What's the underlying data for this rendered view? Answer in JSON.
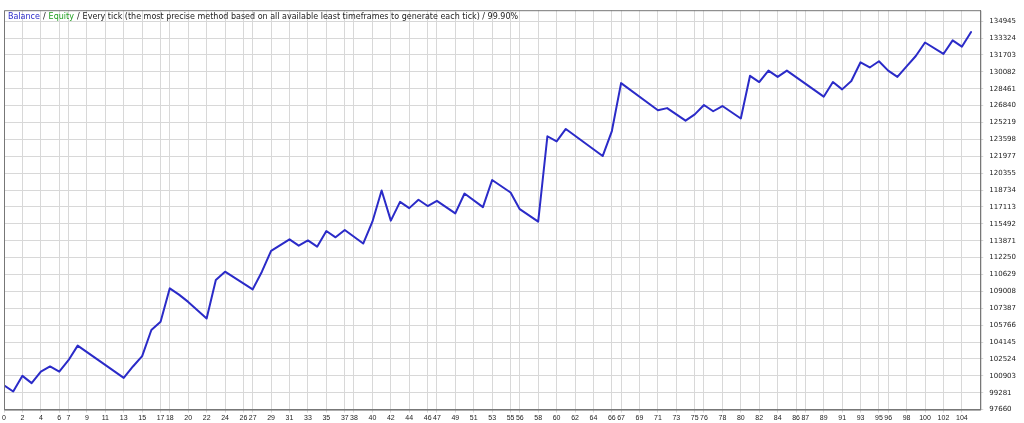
{
  "chart_data": {
    "type": "line",
    "title": "Every tick (the most precise method based on all available least timeframes to generate each tick) / 99.90%",
    "annotations": [
      "/",
      "/"
    ],
    "x": [
      0,
      1,
      2,
      3,
      4,
      5,
      6,
      7,
      8,
      13,
      14,
      15,
      16,
      17,
      18,
      19,
      20,
      21,
      22,
      23,
      24,
      27,
      28,
      29,
      31,
      32,
      33,
      34,
      35,
      36,
      37,
      39,
      40,
      41,
      42,
      43,
      44,
      45,
      46,
      47,
      49,
      50,
      52,
      53,
      55,
      56,
      58,
      59,
      60,
      61,
      65,
      66,
      67,
      71,
      72,
      74,
      75,
      76,
      77,
      78,
      80,
      81,
      82,
      83,
      84,
      85,
      89,
      90,
      91,
      92,
      93,
      94,
      95,
      96,
      97,
      98,
      99,
      100,
      102,
      103,
      104,
      105
    ],
    "series": [
      {
        "name": "Balance",
        "color": "#2b2bc8",
        "values": [
          100000,
          99400,
          100900,
          100200,
          101300,
          101800,
          101300,
          102400,
          103800,
          100700,
          101800,
          102800,
          105300,
          106100,
          109300,
          108700,
          108000,
          107200,
          106400,
          110100,
          110900,
          109200,
          110900,
          112900,
          114000,
          113400,
          113900,
          113300,
          114800,
          114200,
          114900,
          113600,
          115700,
          118700,
          115800,
          117600,
          117000,
          117800,
          117200,
          117700,
          116500,
          118400,
          117100,
          119700,
          118500,
          116900,
          115700,
          123900,
          123400,
          124600,
          122000,
          124400,
          129000,
          126400,
          126600,
          125400,
          126000,
          126900,
          126300,
          126800,
          125600,
          129700,
          129100,
          130200,
          129600,
          130200,
          127700,
          129100,
          128400,
          129200,
          131000,
          130500,
          131100,
          130200,
          129600,
          130600,
          131600,
          132900,
          131800,
          133100,
          132500,
          133900
        ]
      },
      {
        "name": "Equity",
        "color": "#22a022",
        "values": [
          null,
          null,
          null,
          null,
          null,
          null,
          null,
          null,
          null,
          null,
          null,
          null,
          null,
          null,
          null,
          null,
          null,
          null,
          null,
          null,
          null,
          null,
          null,
          null,
          null,
          null,
          null,
          null,
          null,
          null,
          null,
          null,
          null,
          null,
          null,
          null,
          null,
          null,
          null,
          null,
          null,
          null,
          null,
          null,
          null,
          null,
          null,
          null,
          null,
          null,
          null,
          null,
          null,
          null,
          null,
          null,
          null,
          null,
          null,
          null,
          null,
          null,
          null,
          null,
          null,
          null,
          null,
          null,
          null,
          null,
          null,
          null,
          null,
          null,
          null,
          null,
          null,
          null,
          null,
          null,
          null,
          null
        ]
      }
    ],
    "xlim": [
      0,
      106
    ],
    "xticks": [
      0,
      2,
      4,
      6,
      7,
      9,
      11,
      13,
      15,
      17,
      18,
      20,
      22,
      24,
      26,
      27,
      29,
      31,
      33,
      35,
      37,
      38,
      40,
      42,
      44,
      46,
      47,
      49,
      51,
      53,
      55,
      56,
      58,
      60,
      62,
      64,
      66,
      67,
      69,
      71,
      73,
      75,
      76,
      78,
      80,
      82,
      84,
      86,
      87,
      89,
      91,
      93,
      95,
      96,
      98,
      100,
      102,
      104
    ],
    "ylim": [
      97660,
      136000
    ],
    "yticks": [
      97660,
      99281,
      100903,
      102524,
      104145,
      105766,
      107387,
      109008,
      110629,
      112250,
      113871,
      115492,
      117113,
      118734,
      120355,
      121977,
      123598,
      125219,
      126840,
      128461,
      130082,
      131703,
      133324,
      134945
    ],
    "grid": true,
    "legend": "top left",
    "marker": "none",
    "line_style": "solid"
  }
}
